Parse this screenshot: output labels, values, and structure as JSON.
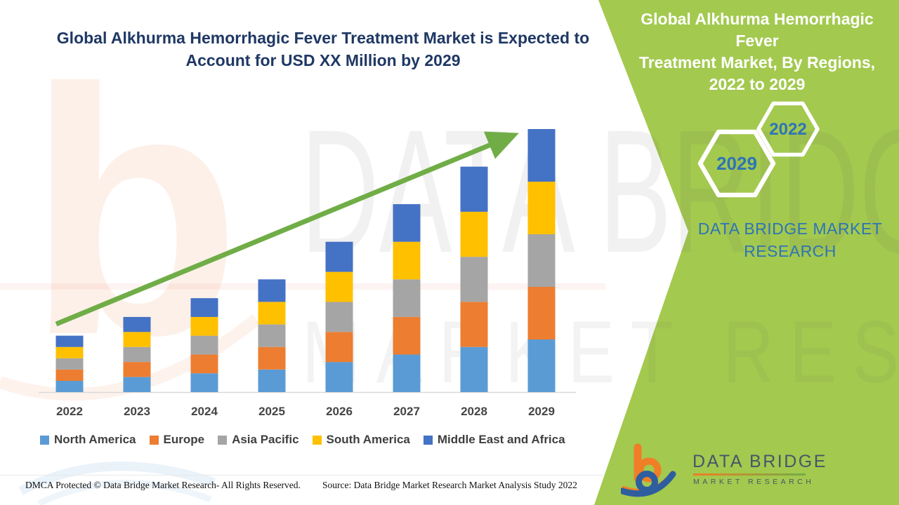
{
  "main_title": {
    "lines": [
      "Global Alkhurma Hemorrhagic Fever Treatment Market is Expected to",
      "Account for USD XX Million by 2029"
    ]
  },
  "side_panel": {
    "title_lines": [
      "Global Alkhurma Hemorrhagic Fever",
      "Treatment Market, By Regions,",
      "2022 to 2029"
    ],
    "hexagons": [
      {
        "label": "2029"
      },
      {
        "label": "2022"
      }
    ],
    "brand_lines": [
      "DATA BRIDGE MARKET",
      "RESEARCH"
    ],
    "background_color": "#A3C94F",
    "accent_text_color": "#2E74B5"
  },
  "chart_data": {
    "type": "bar",
    "stacked": true,
    "title": "Global Alkhurma Hemorrhagic Fever Treatment Market is Expected to Account for USD XX Million by 2029",
    "xlabel": "",
    "ylabel": "",
    "categories": [
      "2022",
      "2023",
      "2024",
      "2025",
      "2026",
      "2027",
      "2028",
      "2029"
    ],
    "series": [
      {
        "name": "North America",
        "color": "#5B9BD5",
        "values": [
          6,
          8,
          10,
          12,
          16,
          20,
          24,
          28
        ]
      },
      {
        "name": "Europe",
        "color": "#ED7D31",
        "values": [
          6,
          8,
          10,
          12,
          16,
          20,
          24,
          28
        ]
      },
      {
        "name": "Asia Pacific",
        "color": "#A5A5A5",
        "values": [
          6,
          8,
          10,
          12,
          16,
          20,
          24,
          28
        ]
      },
      {
        "name": "South America",
        "color": "#FFC000",
        "values": [
          6,
          8,
          10,
          12,
          16,
          20,
          24,
          28
        ]
      },
      {
        "name": "Middle East and Africa",
        "color": "#4472C4",
        "values": [
          6,
          8,
          10,
          12,
          16,
          20,
          24,
          28
        ]
      }
    ],
    "totals": [
      30,
      40,
      50,
      60,
      80,
      100,
      120,
      140
    ],
    "ylim": [
      0,
      150
    ],
    "grid": false,
    "legend_position": "bottom",
    "trend_arrow": {
      "present": true,
      "color": "#70AD47"
    }
  },
  "footer": {
    "left": "DMCA Protected © Data Bridge Market Research- All Rights Reserved.",
    "right": "Source: Data Bridge Market Research Market Analysis Study 2022"
  },
  "logo": {
    "name": "DATA BRIDGE",
    "subtitle": "MARKET RESEARCH"
  },
  "watermark": {
    "letter": "b",
    "row1": "DATA BRIDGE",
    "row2": "MARKET RESEARCH"
  }
}
